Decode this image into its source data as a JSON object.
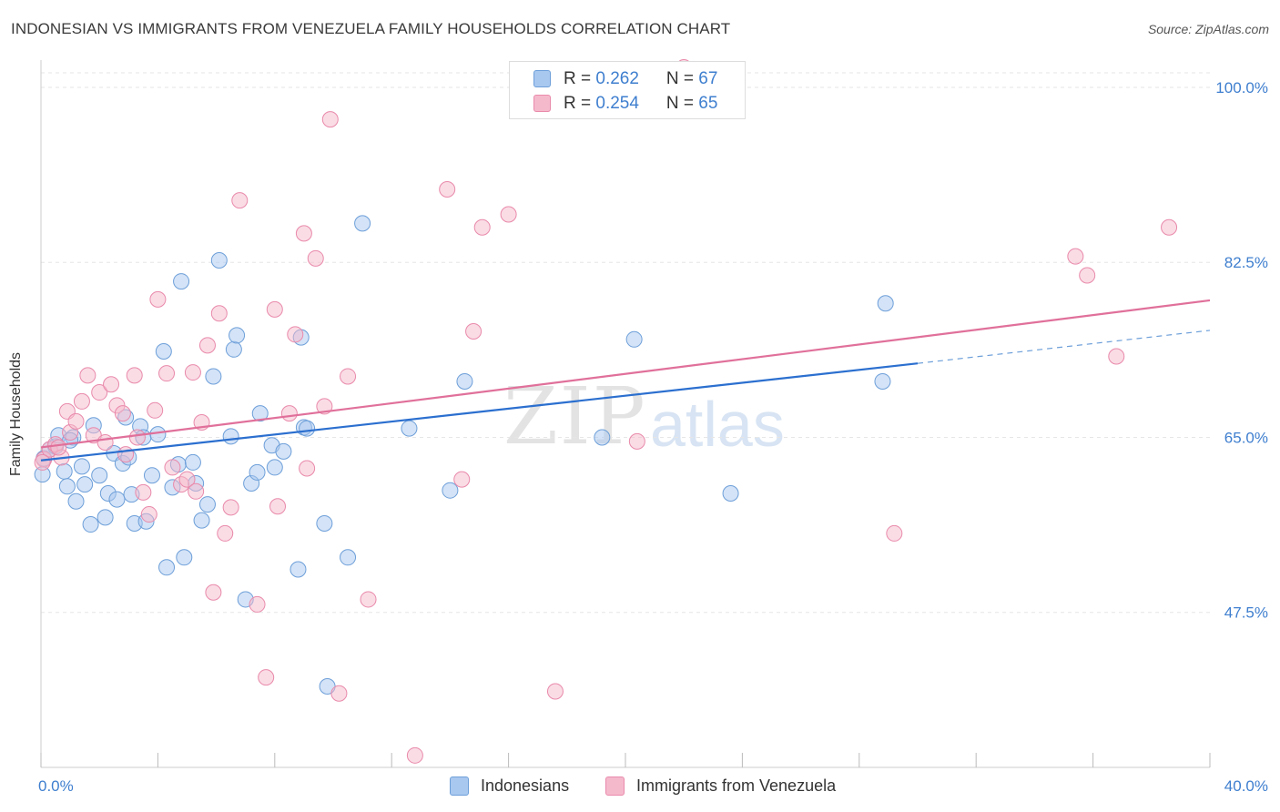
{
  "title": "INDONESIAN VS IMMIGRANTS FROM VENEZUELA FAMILY HOUSEHOLDS CORRELATION CHART",
  "source": "Source: ZipAtlas.com",
  "watermark": {
    "zip": "ZIP",
    "atlas": "atlas"
  },
  "legend_stats": [
    {
      "r_label": "R = ",
      "r_value": "0.262",
      "n_label": "N = ",
      "n_value": "67"
    },
    {
      "r_label": "R = ",
      "r_value": "0.254",
      "n_label": "N = ",
      "n_value": "65"
    }
  ],
  "colors": {
    "blue_fill": "#a9c8ef",
    "blue_stroke": "#6d9fd9",
    "blue_line": "#2b6fcf",
    "pink_fill": "#f5b9cc",
    "pink_stroke": "#e98aab",
    "pink_line": "#e0709a",
    "tick_text": "#3f7fcf",
    "grid": "#e6e6e6"
  },
  "chart_data": {
    "type": "scatter",
    "title": "INDONESIAN VS IMMIGRANTS FROM VENEZUELA FAMILY HOUSEHOLDS CORRELATION CHART",
    "xlabel": "",
    "ylabel": "Family Households",
    "xlim": [
      0,
      40
    ],
    "ylim": [
      32,
      102
    ],
    "x_tick_labels": [
      "0.0%",
      "40.0%"
    ],
    "y_ticks": [
      47.5,
      65.0,
      82.5,
      100.0
    ],
    "y_tick_labels": [
      "47.5%",
      "65.0%",
      "82.5%",
      "100.0%"
    ],
    "grid": true,
    "legend_position": "bottom",
    "series": [
      {
        "name": "Indonesians",
        "r": 0.262,
        "n": 67,
        "trend": {
          "x0": 0,
          "y0": 62.7,
          "x1": 30,
          "y1": 72.4,
          "dash_to_x": 40,
          "dash_to_y": 75.7
        },
        "points": [
          [
            0.1,
            62.9
          ],
          [
            0.3,
            63.8
          ],
          [
            0.5,
            64.1
          ],
          [
            0.6,
            65.2
          ],
          [
            0.8,
            61.6
          ],
          [
            0.9,
            60.1
          ],
          [
            1.1,
            65.0
          ],
          [
            1.2,
            58.6
          ],
          [
            1.4,
            62.1
          ],
          [
            1.5,
            60.3
          ],
          [
            1.7,
            56.3
          ],
          [
            1.8,
            66.2
          ],
          [
            2.0,
            61.2
          ],
          [
            2.2,
            57.0
          ],
          [
            2.3,
            59.4
          ],
          [
            2.5,
            63.4
          ],
          [
            2.6,
            58.8
          ],
          [
            2.8,
            62.4
          ],
          [
            2.9,
            67.0
          ],
          [
            3.1,
            59.3
          ],
          [
            3.2,
            56.4
          ],
          [
            3.4,
            66.1
          ],
          [
            3.5,
            65.0
          ],
          [
            3.6,
            56.6
          ],
          [
            3.8,
            61.2
          ],
          [
            4.0,
            65.3
          ],
          [
            4.2,
            73.6
          ],
          [
            4.3,
            52.0
          ],
          [
            4.5,
            60.0
          ],
          [
            4.7,
            62.3
          ],
          [
            4.8,
            80.6
          ],
          [
            4.9,
            53.0
          ],
          [
            5.2,
            62.5
          ],
          [
            5.3,
            60.4
          ],
          [
            5.5,
            56.7
          ],
          [
            5.7,
            58.3
          ],
          [
            5.9,
            71.1
          ],
          [
            6.1,
            82.7
          ],
          [
            6.5,
            65.1
          ],
          [
            6.6,
            73.8
          ],
          [
            6.7,
            75.2
          ],
          [
            7.0,
            48.8
          ],
          [
            7.2,
            60.4
          ],
          [
            7.4,
            61.5
          ],
          [
            7.5,
            67.4
          ],
          [
            7.9,
            64.2
          ],
          [
            8.0,
            62.0
          ],
          [
            8.3,
            63.6
          ],
          [
            8.8,
            51.8
          ],
          [
            8.9,
            75.0
          ],
          [
            9.0,
            66.0
          ],
          [
            9.1,
            65.9
          ],
          [
            9.7,
            56.4
          ],
          [
            9.8,
            40.1
          ],
          [
            10.5,
            53.0
          ],
          [
            11.0,
            86.4
          ],
          [
            12.6,
            65.9
          ],
          [
            14.0,
            59.7
          ],
          [
            14.5,
            70.6
          ],
          [
            19.2,
            65.0
          ],
          [
            20.3,
            74.8
          ],
          [
            23.6,
            59.4
          ],
          [
            28.8,
            70.6
          ],
          [
            28.9,
            78.4
          ],
          [
            0.05,
            61.3
          ],
          [
            1.0,
            64.7
          ],
          [
            3.0,
            63.0
          ]
        ]
      },
      {
        "name": "Immigrants from Venezuela",
        "r": 0.254,
        "n": 65,
        "trend": {
          "x0": 0,
          "y0": 64.0,
          "x1": 40,
          "y1": 78.7
        },
        "points": [
          [
            0.1,
            62.8
          ],
          [
            0.3,
            63.8
          ],
          [
            0.5,
            64.3
          ],
          [
            0.7,
            63.0
          ],
          [
            0.9,
            67.6
          ],
          [
            1.0,
            65.5
          ],
          [
            1.2,
            66.6
          ],
          [
            1.4,
            68.6
          ],
          [
            1.6,
            71.2
          ],
          [
            1.8,
            65.2
          ],
          [
            2.0,
            69.5
          ],
          [
            2.2,
            64.5
          ],
          [
            2.4,
            70.3
          ],
          [
            2.6,
            68.2
          ],
          [
            2.8,
            67.4
          ],
          [
            2.9,
            63.3
          ],
          [
            3.2,
            71.2
          ],
          [
            3.3,
            65.0
          ],
          [
            3.5,
            59.5
          ],
          [
            3.7,
            57.3
          ],
          [
            3.9,
            67.7
          ],
          [
            4.0,
            78.8
          ],
          [
            4.3,
            71.4
          ],
          [
            4.5,
            62.0
          ],
          [
            4.8,
            60.3
          ],
          [
            5.0,
            60.8
          ],
          [
            5.2,
            71.5
          ],
          [
            5.3,
            59.6
          ],
          [
            5.5,
            66.5
          ],
          [
            5.7,
            74.2
          ],
          [
            5.9,
            49.5
          ],
          [
            6.1,
            77.4
          ],
          [
            6.3,
            55.4
          ],
          [
            6.5,
            58.0
          ],
          [
            6.8,
            88.7
          ],
          [
            7.4,
            48.3
          ],
          [
            7.7,
            41.0
          ],
          [
            8.0,
            77.8
          ],
          [
            8.1,
            58.1
          ],
          [
            8.5,
            67.4
          ],
          [
            8.7,
            75.3
          ],
          [
            9.0,
            85.4
          ],
          [
            9.1,
            61.9
          ],
          [
            9.4,
            82.9
          ],
          [
            9.7,
            68.1
          ],
          [
            9.9,
            96.8
          ],
          [
            10.2,
            39.4
          ],
          [
            10.5,
            71.1
          ],
          [
            11.2,
            48.8
          ],
          [
            12.8,
            33.2
          ],
          [
            13.9,
            89.8
          ],
          [
            14.4,
            60.8
          ],
          [
            14.8,
            75.6
          ],
          [
            15.1,
            86.0
          ],
          [
            16.0,
            87.3
          ],
          [
            17.6,
            39.6
          ],
          [
            20.4,
            64.6
          ],
          [
            22.0,
            102.0
          ],
          [
            29.2,
            55.4
          ],
          [
            35.4,
            83.1
          ],
          [
            35.8,
            81.2
          ],
          [
            36.8,
            73.1
          ],
          [
            38.6,
            86.0
          ],
          [
            0.6,
            64.0
          ],
          [
            0.05,
            62.5
          ]
        ]
      }
    ]
  }
}
